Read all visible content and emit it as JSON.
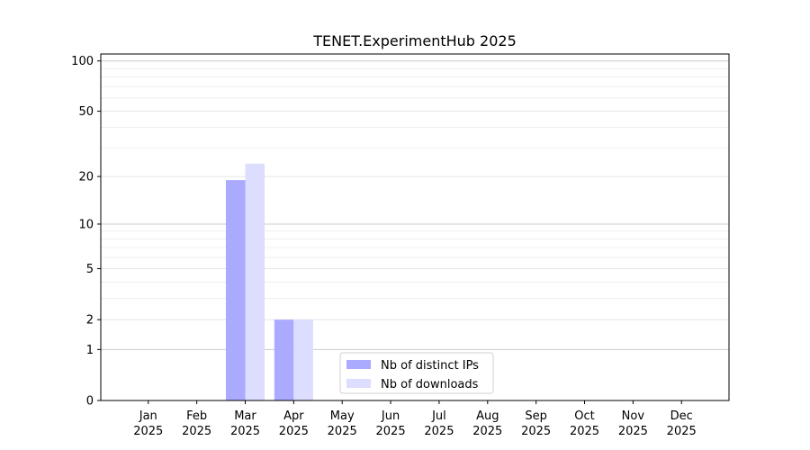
{
  "chart_data": {
    "type": "bar",
    "title": "TENET.ExperimentHub 2025",
    "xlabel": "",
    "ylabel": "",
    "categories": [
      [
        "Jan",
        "2025"
      ],
      [
        "Feb",
        "2025"
      ],
      [
        "Mar",
        "2025"
      ],
      [
        "Apr",
        "2025"
      ],
      [
        "May",
        "2025"
      ],
      [
        "Jun",
        "2025"
      ],
      [
        "Jul",
        "2025"
      ],
      [
        "Aug",
        "2025"
      ],
      [
        "Sep",
        "2025"
      ],
      [
        "Oct",
        "2025"
      ],
      [
        "Nov",
        "2025"
      ],
      [
        "Dec",
        "2025"
      ]
    ],
    "series": [
      {
        "name": "Nb of distinct IPs",
        "color": "#aaaaff",
        "values": [
          0,
          0,
          19,
          2,
          0,
          0,
          0,
          0,
          0,
          0,
          0,
          0
        ]
      },
      {
        "name": "Nb of downloads",
        "color": "#ddddff",
        "values": [
          0,
          0,
          24,
          2,
          0,
          0,
          0,
          0,
          0,
          0,
          0,
          0
        ]
      }
    ],
    "y_scale": "log(1+y)",
    "yticks": [
      0,
      1,
      2,
      5,
      10,
      20,
      50,
      100
    ],
    "ylim": [
      0,
      110
    ],
    "grid": true,
    "legend_position": "lower-center"
  }
}
